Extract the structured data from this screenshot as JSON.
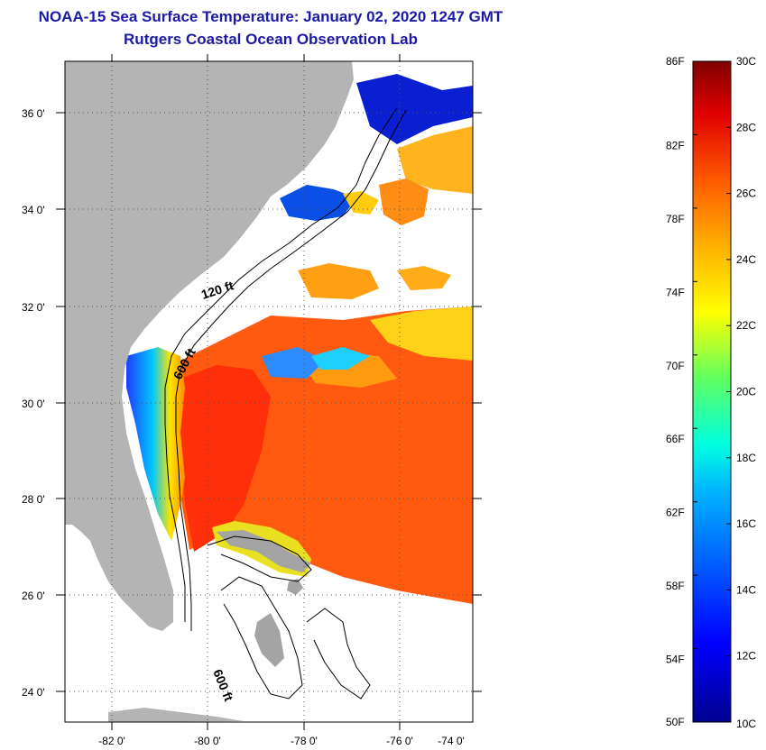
{
  "header": {
    "title": "NOAA-15 Sea Surface Temperature:  January 02, 2020 1247 GMT",
    "subtitle": "Rutgers Coastal Ocean Observation Lab"
  },
  "map": {
    "x_ticks": [
      "-82 0'",
      "-80 0'",
      "-78 0'",
      "-76 0'",
      "-74 0'"
    ],
    "y_ticks": [
      "36 0'",
      "34 0'",
      "32 0'",
      "30 0'",
      "28 0'",
      "26 0'",
      "24 0'"
    ],
    "contour_labels": [
      "120 ft",
      "600 ft",
      "600 ft"
    ],
    "colors": {
      "land": "#b4b4b4",
      "cloud": "#ffffff",
      "warm": "#ff5a10",
      "hot": "#ff2a08"
    }
  },
  "colorbar": {
    "fahrenheit_labels": [
      "86F",
      "82F",
      "78F",
      "74F",
      "70F",
      "66F",
      "62F",
      "58F",
      "54F",
      "50F"
    ],
    "celsius_labels": [
      "30C",
      "28C",
      "26C",
      "24C",
      "22C",
      "20C",
      "18C",
      "16C",
      "14C",
      "12C",
      "10C"
    ]
  }
}
